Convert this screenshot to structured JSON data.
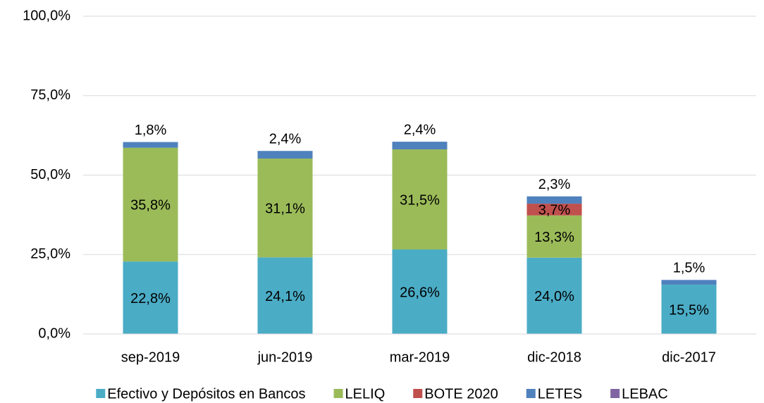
{
  "chart_data": {
    "type": "stacked_bar",
    "categories": [
      "sep-2019",
      "jun-2019",
      "mar-2019",
      "dic-2018",
      "dic-2017"
    ],
    "series": [
      {
        "name": "Efectivo y Depósitos en Bancos",
        "color": "#4BACC6",
        "values": [
          22.8,
          24.1,
          26.6,
          24.0,
          15.5
        ],
        "value_labels": [
          "22,8%",
          "24,1%",
          "26,6%",
          "24,0%",
          "15,5%"
        ]
      },
      {
        "name": "LELIQ",
        "color": "#9BBB59",
        "values": [
          35.8,
          31.1,
          31.5,
          13.3,
          null
        ],
        "value_labels": [
          "35,8%",
          "31,1%",
          "31,5%",
          "13,3%",
          null
        ]
      },
      {
        "name": "BOTE 2020",
        "color": "#C0504D",
        "values": [
          null,
          null,
          null,
          3.7,
          null
        ],
        "value_labels": [
          null,
          null,
          null,
          "3,7%",
          null
        ]
      },
      {
        "name": "LETES",
        "color": "#4F81BD",
        "values": [
          1.8,
          2.4,
          2.4,
          2.3,
          1.5
        ],
        "value_labels": [
          "1,8%",
          "2,4%",
          "2,4%",
          "2,3%",
          "1,5%"
        ]
      },
      {
        "name": "LEBAC",
        "color": "#8064A2",
        "values": [
          null,
          null,
          null,
          null,
          null
        ]
      }
    ],
    "ylim": [
      0,
      100
    ],
    "yticks": [
      {
        "value": 0,
        "label": "0,0%"
      },
      {
        "value": 25,
        "label": "25,0%"
      },
      {
        "value": 50,
        "label": "50,0%"
      },
      {
        "value": 75,
        "label": "75,0%"
      },
      {
        "value": 100,
        "label": "100,0%"
      }
    ],
    "grid": true,
    "legend": "bottom"
  }
}
